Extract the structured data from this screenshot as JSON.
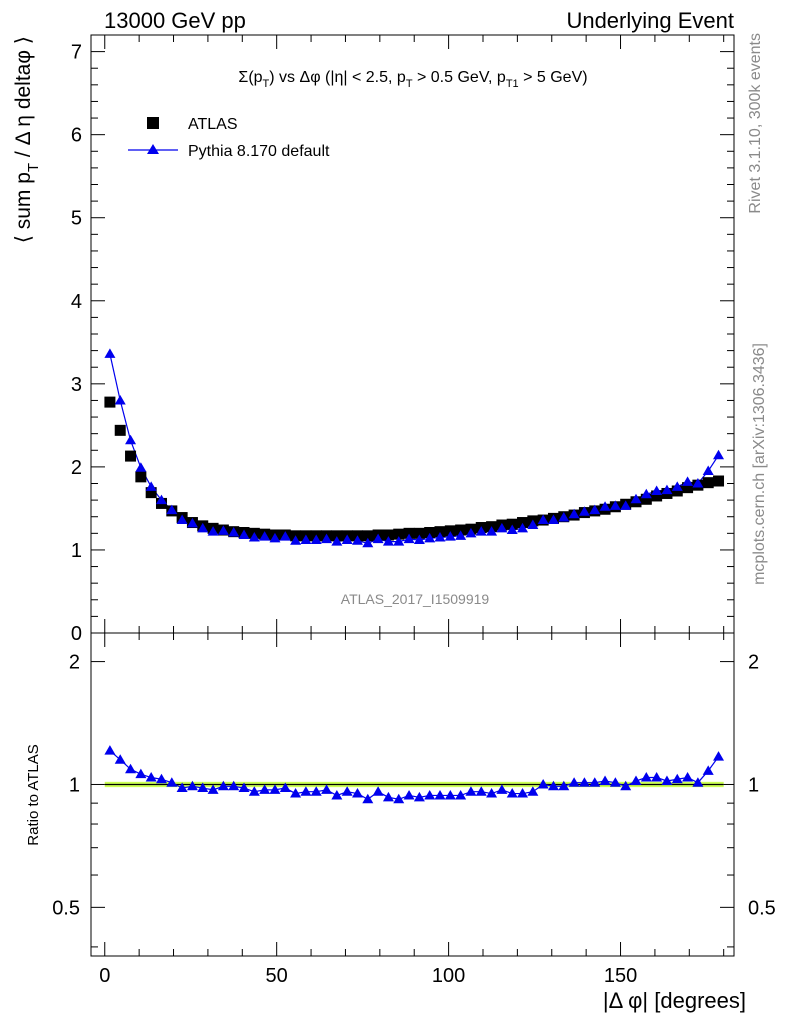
{
  "header": {
    "left": "13000 GeV pp",
    "right": "Underlying Event"
  },
  "side_labels": {
    "rivet": "Rivet 3.1.10,  300k events",
    "mcplots": "mcplots.cern.ch [arXiv:1306.3436]"
  },
  "watermark": "ATLAS_2017_I1509919",
  "colors": {
    "data": "#000000",
    "mc": "#0000ee",
    "band": "#ccff55",
    "gray_text": "#8a8a8a"
  },
  "chart_data": [
    {
      "type": "scatter",
      "title": "Σ(pT) vs Δφ (|η| < 2.5, pT > 0.5 GeV, pT1 > 5 GeV)",
      "xlabel": "|Δ φ| [degrees]",
      "ylabel": "⟨ sum pT / Δ η deltaφ ⟩",
      "xlim": [
        -4,
        183
      ],
      "ylim": [
        0,
        7.2
      ],
      "yticks": [
        0,
        1,
        2,
        3,
        4,
        5,
        6,
        7
      ],
      "xticks": [
        0,
        50,
        100,
        150
      ],
      "legend_position": "top-left",
      "x": [
        1.5,
        4.5,
        7.5,
        10.5,
        13.5,
        16.5,
        19.5,
        22.5,
        25.5,
        28.5,
        31.5,
        34.5,
        37.5,
        40.5,
        43.5,
        46.5,
        49.5,
        52.5,
        55.5,
        58.5,
        61.5,
        64.5,
        67.5,
        70.5,
        73.5,
        76.5,
        79.5,
        82.5,
        85.5,
        88.5,
        91.5,
        94.5,
        97.5,
        100.5,
        103.5,
        106.5,
        109.5,
        112.5,
        115.5,
        118.5,
        121.5,
        124.5,
        127.5,
        130.5,
        133.5,
        136.5,
        139.5,
        142.5,
        145.5,
        148.5,
        151.5,
        154.5,
        157.5,
        160.5,
        163.5,
        166.5,
        169.5,
        172.5,
        175.5,
        178.5
      ],
      "series": [
        {
          "name": "ATLAS",
          "marker": "square",
          "values": [
            2.78,
            2.44,
            2.13,
            1.88,
            1.69,
            1.56,
            1.47,
            1.39,
            1.33,
            1.29,
            1.26,
            1.24,
            1.22,
            1.21,
            1.2,
            1.19,
            1.18,
            1.18,
            1.17,
            1.17,
            1.17,
            1.17,
            1.17,
            1.17,
            1.17,
            1.17,
            1.18,
            1.18,
            1.19,
            1.2,
            1.2,
            1.21,
            1.22,
            1.23,
            1.24,
            1.25,
            1.27,
            1.28,
            1.3,
            1.31,
            1.33,
            1.35,
            1.36,
            1.38,
            1.4,
            1.42,
            1.45,
            1.47,
            1.49,
            1.52,
            1.55,
            1.58,
            1.61,
            1.65,
            1.68,
            1.71,
            1.75,
            1.78,
            1.81,
            1.83
          ]
        },
        {
          "name": "Pythia 8.170 default",
          "marker": "triangle",
          "values": [
            3.36,
            2.8,
            2.32,
            1.99,
            1.76,
            1.6,
            1.48,
            1.36,
            1.32,
            1.26,
            1.22,
            1.23,
            1.21,
            1.18,
            1.15,
            1.16,
            1.14,
            1.16,
            1.11,
            1.12,
            1.12,
            1.13,
            1.1,
            1.12,
            1.11,
            1.08,
            1.13,
            1.1,
            1.1,
            1.13,
            1.12,
            1.14,
            1.15,
            1.16,
            1.17,
            1.2,
            1.22,
            1.22,
            1.26,
            1.24,
            1.26,
            1.3,
            1.36,
            1.36,
            1.39,
            1.43,
            1.46,
            1.48,
            1.52,
            1.53,
            1.53,
            1.61,
            1.67,
            1.71,
            1.72,
            1.76,
            1.82,
            1.8,
            1.95,
            2.14
          ]
        }
      ]
    },
    {
      "type": "scatter",
      "title": "",
      "xlabel": "|Δ φ| [degrees]",
      "ylabel": "Ratio to ATLAS",
      "xlim": [
        -4,
        183
      ],
      "ylim": [
        0.38,
        2.35
      ],
      "yticks": [
        0.5,
        1,
        2
      ],
      "xticks": [
        0,
        50,
        100,
        150
      ],
      "band": [
        0.985,
        1.015
      ],
      "series": [
        {
          "name": "Pythia 8.170 default",
          "marker": "triangle",
          "values": [
            1.21,
            1.15,
            1.09,
            1.06,
            1.04,
            1.03,
            1.01,
            0.98,
            0.99,
            0.98,
            0.97,
            0.99,
            0.99,
            0.98,
            0.96,
            0.97,
            0.97,
            0.98,
            0.95,
            0.96,
            0.96,
            0.97,
            0.94,
            0.96,
            0.95,
            0.92,
            0.96,
            0.93,
            0.92,
            0.94,
            0.93,
            0.94,
            0.94,
            0.94,
            0.94,
            0.96,
            0.96,
            0.95,
            0.97,
            0.95,
            0.95,
            0.96,
            1.0,
            0.99,
            0.99,
            1.01,
            1.01,
            1.01,
            1.02,
            1.01,
            0.99,
            1.02,
            1.04,
            1.04,
            1.02,
            1.03,
            1.04,
            1.01,
            1.08,
            1.17
          ]
        }
      ]
    }
  ]
}
